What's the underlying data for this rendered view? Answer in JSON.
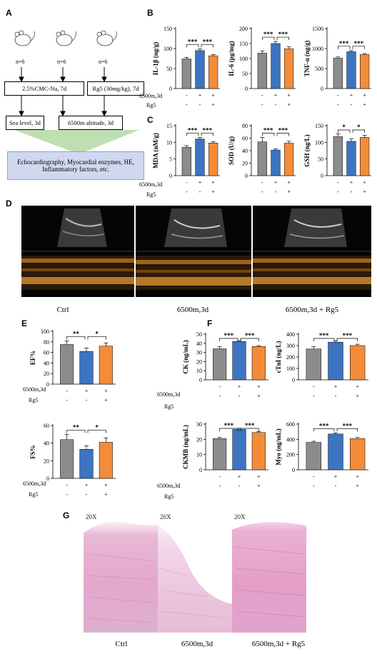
{
  "panels": {
    "A": "A",
    "B": "B",
    "C": "C",
    "D": "D",
    "E": "E",
    "F": "F",
    "G": "G"
  },
  "panelA": {
    "n_labels": [
      "n=6",
      "n=6",
      "n=6"
    ],
    "box_cmc": "2.5%CMC-Na, 7d",
    "box_rg5": "Rg5 (30mg/kg), 7d",
    "box_sea": "Sea level, 3d",
    "box_alt": "6500m altitude, 3d",
    "outcome": "Echocardiography, Myocardial enzymes, HE, Inflammatory factors, etc."
  },
  "conditions": {
    "row1_label": "6500m,3d",
    "row2_label": "Rg5",
    "row1_signs": [
      "-",
      "+",
      "+"
    ],
    "row2_signs": [
      "-",
      "-",
      "+"
    ]
  },
  "colors": {
    "ctrl": "#8c8c8c",
    "alt": "#3b74c0",
    "rg5": "#f28c3a"
  },
  "echo_captions": [
    "Ctrl",
    "6500m,3d",
    "6500m,3d + Rg5"
  ],
  "he_captions": [
    "Ctrl",
    "6500m,3d",
    "6500m,3d + Rg5"
  ],
  "he_magnification": [
    "20X",
    "20X",
    "20X"
  ],
  "chart_data": [
    {
      "id": "il1b",
      "type": "bar",
      "panel": "B",
      "ylabel": "IL-1β (ng/g)",
      "ylim": [
        0,
        150
      ],
      "yticks": [
        0,
        50,
        100,
        150
      ],
      "categories": [
        "Ctrl",
        "6500m,3d",
        "6500m,3d + Rg5"
      ],
      "values": [
        74,
        95,
        82
      ],
      "errors": [
        4,
        4,
        3
      ],
      "sig": [
        "***",
        "***"
      ]
    },
    {
      "id": "il6",
      "type": "bar",
      "panel": "B",
      "ylabel": "IL-6 (pg/mg)",
      "ylim": [
        0,
        200
      ],
      "yticks": [
        0,
        50,
        100,
        150,
        200
      ],
      "categories": [
        "Ctrl",
        "6500m,3d",
        "6500m,3d + Rg5"
      ],
      "values": [
        118,
        150,
        133
      ],
      "errors": [
        7,
        7,
        6
      ],
      "sig": [
        "***",
        "***"
      ]
    },
    {
      "id": "tnfa",
      "type": "bar",
      "panel": "B",
      "ylabel": "TNF-α (ng/g)",
      "ylim": [
        0,
        1500
      ],
      "yticks": [
        0,
        500,
        1000,
        1500
      ],
      "categories": [
        "Ctrl",
        "6500m,3d",
        "6500m,3d + Rg5"
      ],
      "values": [
        760,
        920,
        850
      ],
      "errors": [
        30,
        30,
        25
      ],
      "sig": [
        "***",
        "***"
      ]
    },
    {
      "id": "mda",
      "type": "bar",
      "panel": "C",
      "ylabel": "MDA (nM/g)",
      "ylim": [
        0,
        15
      ],
      "yticks": [
        0,
        5,
        10,
        15
      ],
      "categories": [
        "Ctrl",
        "6500m,3d",
        "6500m,3d + Rg5"
      ],
      "values": [
        8.5,
        11,
        9.8
      ],
      "errors": [
        0.5,
        0.5,
        0.4
      ],
      "sig": [
        "***",
        "***"
      ]
    },
    {
      "id": "sod",
      "type": "bar",
      "panel": "C",
      "ylabel": "SOD (U/g)",
      "ylim": [
        0,
        80
      ],
      "yticks": [
        0,
        20,
        40,
        60,
        80
      ],
      "categories": [
        "Ctrl",
        "6500m,3d",
        "6500m,3d + Rg5"
      ],
      "values": [
        54,
        41,
        52
      ],
      "errors": [
        7,
        2,
        3
      ],
      "sig": [
        "***",
        "***"
      ]
    },
    {
      "id": "gsh",
      "type": "bar",
      "panel": "C",
      "ylabel": "GSH (ng/L)",
      "ylim": [
        0,
        150
      ],
      "yticks": [
        0,
        50,
        100,
        150
      ],
      "categories": [
        "Ctrl",
        "6500m,3d",
        "6500m,3d + Rg5"
      ],
      "values": [
        117,
        103,
        115
      ],
      "errors": [
        9,
        7,
        6
      ],
      "sig": [
        "*",
        "*"
      ]
    },
    {
      "id": "ef",
      "type": "bar",
      "panel": "E",
      "ylabel": "EF%",
      "ylim": [
        0,
        100
      ],
      "yticks": [
        0,
        20,
        40,
        60,
        80,
        100
      ],
      "categories": [
        "Ctrl",
        "6500m,3d",
        "6500m,3d + Rg5"
      ],
      "values": [
        75,
        62,
        72
      ],
      "errors": [
        7,
        6,
        6
      ],
      "sig": [
        "**",
        "*"
      ]
    },
    {
      "id": "fs",
      "type": "bar",
      "panel": "E",
      "ylabel": "FS%",
      "ylim": [
        0,
        60
      ],
      "yticks": [
        0,
        20,
        40,
        60
      ],
      "categories": [
        "Ctrl",
        "6500m,3d",
        "6500m,3d + Rg5"
      ],
      "values": [
        44,
        33,
        41
      ],
      "errors": [
        6,
        4,
        5
      ],
      "sig": [
        "**",
        "*"
      ]
    },
    {
      "id": "ck",
      "type": "bar",
      "panel": "F",
      "ylabel": "CK (ng/mL)",
      "ylim": [
        0,
        50
      ],
      "yticks": [
        0,
        10,
        20,
        30,
        40,
        50
      ],
      "categories": [
        "Ctrl",
        "6500m,3d",
        "6500m,3d + Rg5"
      ],
      "values": [
        34,
        42,
        36.5
      ],
      "errors": [
        2.5,
        1,
        1
      ],
      "sig": [
        "***",
        "***"
      ]
    },
    {
      "id": "ctni",
      "type": "bar",
      "panel": "F",
      "ylabel": "cTnI (ng/L)",
      "ylim": [
        0,
        400
      ],
      "yticks": [
        0,
        100,
        200,
        300,
        400
      ],
      "categories": [
        "Ctrl",
        "6500m,3d",
        "6500m,3d + Rg5"
      ],
      "values": [
        270,
        330,
        300
      ],
      "errors": [
        20,
        12,
        12
      ],
      "sig": [
        "***",
        "***"
      ]
    },
    {
      "id": "ckmb",
      "type": "bar",
      "panel": "F",
      "ylabel": "CKMB (ng/mL)",
      "ylim": [
        0,
        30
      ],
      "yticks": [
        0,
        10,
        20,
        30
      ],
      "categories": [
        "Ctrl",
        "6500m,3d",
        "6500m,3d + Rg5"
      ],
      "values": [
        20.5,
        26.5,
        24.5
      ],
      "errors": [
        0.8,
        0.8,
        0.5
      ],
      "sig": [
        "***",
        "***"
      ]
    },
    {
      "id": "myo",
      "type": "bar",
      "panel": "F",
      "ylabel": "Myo (ng/mL)",
      "ylim": [
        0,
        600
      ],
      "yticks": [
        0,
        200,
        400,
        600
      ],
      "categories": [
        "Ctrl",
        "6500m,3d",
        "6500m,3d + Rg5"
      ],
      "values": [
        360,
        470,
        410
      ],
      "errors": [
        15,
        15,
        15
      ],
      "sig": [
        "***",
        "***"
      ]
    }
  ]
}
